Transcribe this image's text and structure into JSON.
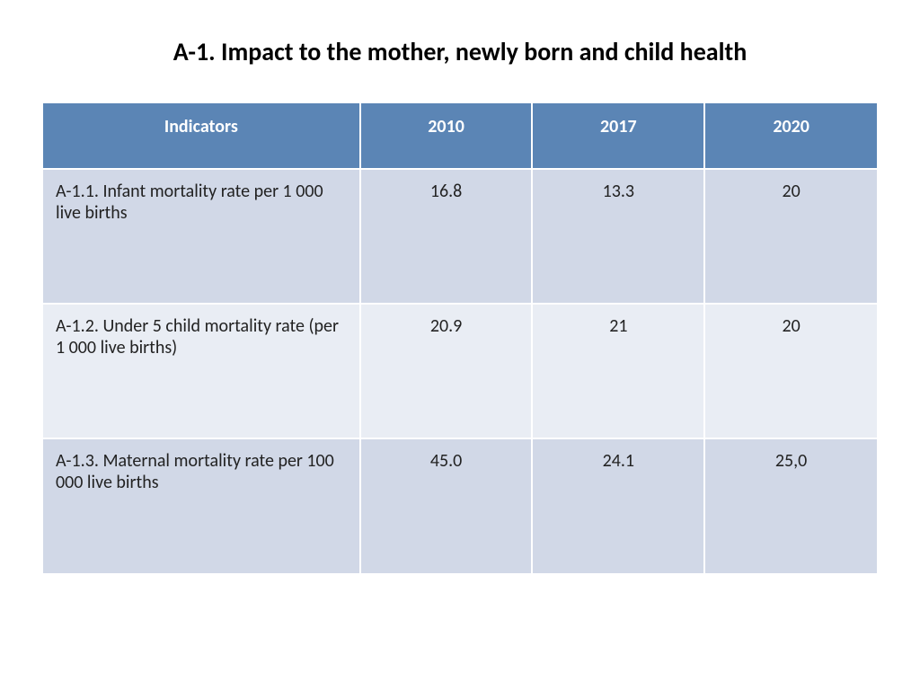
{
  "title": "A-1. Impact to the mother, newly born and child health",
  "table": {
    "type": "table",
    "header_bg": "#5b85b5",
    "header_color": "#ffffff",
    "row_bg_even": "#d1d8e7",
    "row_bg_odd": "#e9edf4",
    "border_color": "#ffffff",
    "title_fontsize": 28,
    "header_fontsize": 20,
    "cell_fontsize": 20,
    "text_color": "#222222",
    "columns": [
      {
        "label": "Indicators",
        "width_pct": 38
      },
      {
        "label": "2010",
        "width_pct": 20.66
      },
      {
        "label": "2017",
        "width_pct": 20.66
      },
      {
        "label": "2020",
        "width_pct": 20.66
      }
    ],
    "rows": [
      {
        "indicator": "A-1.1. Infant mortality rate per 1 000 live births",
        "y2010": "16.8",
        "y2017": "13.3",
        "y2020": "20"
      },
      {
        "indicator": "A-1.2. Under 5 child mortality rate (per 1 000 live births)",
        "y2010": "20.9",
        "y2017": "21",
        "y2020": "20"
      },
      {
        "indicator": "A-1.3. Maternal mortality rate per 100 000 live births",
        "y2010": "45.0",
        "y2017": "24.1",
        "y2020": "25,0"
      }
    ]
  }
}
